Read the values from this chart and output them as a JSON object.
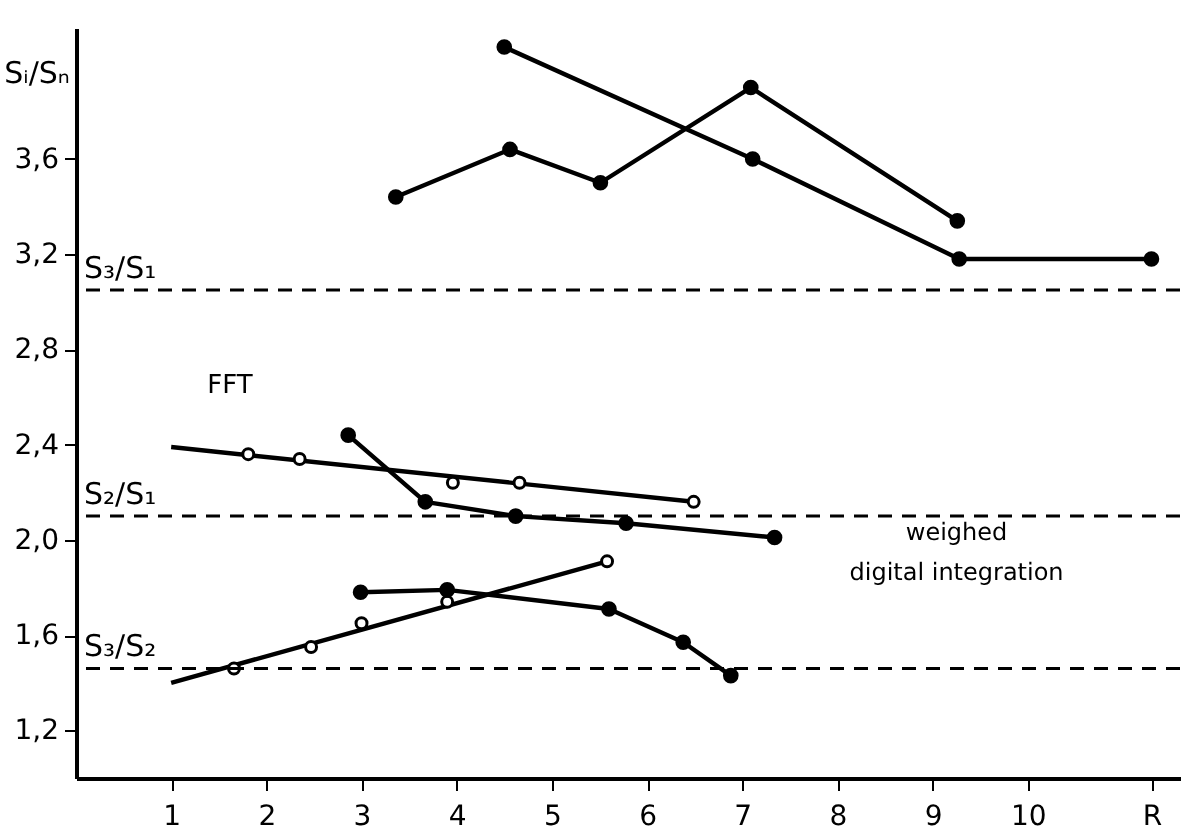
{
  "chart_data": {
    "type": "line",
    "ylabel": "Sᵢ/Sₙ",
    "xlim": [
      0,
      11.6
    ],
    "ylim": [
      1.0,
      4.15
    ],
    "xticks": [
      1,
      2,
      3,
      4,
      5,
      6,
      7,
      8,
      9,
      10,
      {
        "value": 11.3,
        "label": "R"
      }
    ],
    "yticks": [
      {
        "value": 1.2,
        "label": "1,2"
      },
      {
        "value": 1.6,
        "label": "1,6"
      },
      {
        "value": 2.0,
        "label": "2,0"
      },
      {
        "value": 2.4,
        "label": "2,4"
      },
      {
        "value": 2.8,
        "label": "2,8"
      },
      {
        "value": 3.2,
        "label": "3,2"
      },
      {
        "value": 3.6,
        "label": "3,6"
      }
    ],
    "grid": false,
    "marker": "circle",
    "series": [
      {
        "type": "line",
        "color": "#000000",
        "x": [
          4.5,
          7.11,
          9.28,
          11.3
        ],
        "values": [
          4.07,
          3.6,
          3.18,
          3.18
        ]
      },
      {
        "type": "line",
        "color": "#000000",
        "x": [
          3.36,
          4.56,
          5.51,
          7.09,
          9.26
        ],
        "values": [
          3.44,
          3.64,
          3.5,
          3.9,
          3.34
        ]
      },
      {
        "type": "line",
        "color": "#000000",
        "marker": "none",
        "x": [
          1,
          6.49
        ],
        "values": [
          2.39,
          2.16
        ]
      },
      {
        "type": "scatter",
        "color": "#000000",
        "x": [
          1.81,
          2.35,
          3.96,
          4.66,
          6.49
        ],
        "values": [
          2.36,
          2.34,
          2.24,
          2.24,
          2.16
        ]
      },
      {
        "type": "line",
        "color": "#000000",
        "x": [
          2.86,
          3.67,
          4.62,
          5.78,
          7.34
        ],
        "values": [
          2.44,
          2.16,
          2.1,
          2.07,
          2.01
        ]
      },
      {
        "type": "line",
        "color": "#000000",
        "marker": "none",
        "x": [
          1,
          5.58
        ],
        "values": [
          1.4,
          1.91
        ]
      },
      {
        "type": "scatter",
        "color": "#000000",
        "x": [
          1.66,
          2.47,
          3.0,
          3.9,
          5.58
        ],
        "values": [
          1.46,
          1.55,
          1.65,
          1.74,
          1.91
        ]
      },
      {
        "type": "line",
        "color": "#000000",
        "x": [
          2.99,
          3.9,
          5.6,
          6.38,
          6.88
        ],
        "values": [
          1.78,
          1.79,
          1.71,
          1.57,
          1.43
        ]
      }
    ],
    "ref_lines": [
      {
        "axis": "y",
        "value": 3.05,
        "label": "S₃/S₁",
        "line_style": "dashed"
      },
      {
        "axis": "y",
        "value": 2.1,
        "label": "S₂/S₁",
        "line_style": "dashed"
      },
      {
        "axis": "y",
        "value": 1.46,
        "label": "S₃/S₂",
        "line_style": "dashed"
      }
    ],
    "annotations": [
      {
        "text": "FFT",
        "x": 1,
        "y": 2.39
      },
      {
        "text": "weighed\ndigital integration",
        "x": 9,
        "y": 2.1
      }
    ]
  }
}
